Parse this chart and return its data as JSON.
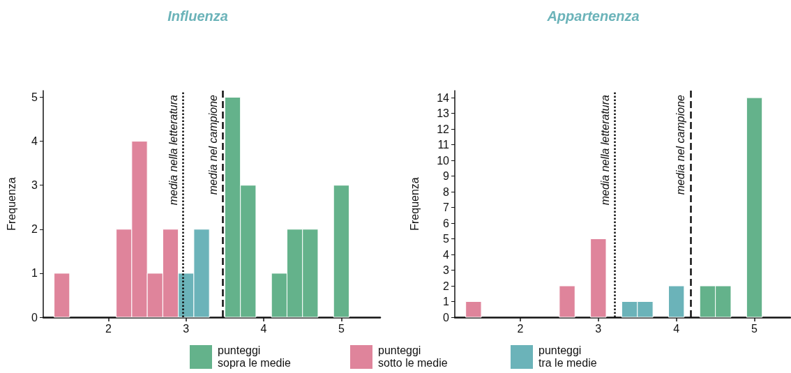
{
  "chart_data": [
    {
      "type": "histogram",
      "title": "Influenza",
      "ylabel": "Frequenza",
      "bins": [
        1.3,
        1.5,
        1.7,
        1.9,
        2.1,
        2.3,
        2.5,
        2.7,
        2.9,
        3.1,
        3.3,
        3.5,
        3.7,
        3.9,
        4.1,
        4.3,
        4.5,
        4.7,
        4.9,
        5.1
      ],
      "series": [
        {
          "name": "punteggi\nsopra le medie",
          "color": "#64b28b",
          "values": [
            null,
            0,
            0,
            0,
            null,
            null,
            null,
            null,
            null,
            null,
            0,
            5,
            3,
            0,
            1,
            2,
            2,
            0,
            3
          ]
        },
        {
          "name": "punteggi\nsotto le medie",
          "color": "#df849b",
          "values": [
            1,
            null,
            null,
            null,
            2,
            4,
            1,
            2,
            null,
            null,
            null,
            null,
            null,
            null,
            null,
            null,
            null,
            null,
            null
          ]
        },
        {
          "name": "punteggi\ntra le medie",
          "color": "#6bb3b9",
          "values": [
            null,
            null,
            null,
            null,
            null,
            null,
            null,
            null,
            1,
            2,
            null,
            null,
            null,
            null,
            null,
            null,
            null,
            null,
            null
          ]
        }
      ],
      "xlim": [
        1.16,
        5.5
      ],
      "xticks": [
        2,
        3,
        4,
        5
      ],
      "ylim": [
        0,
        5.15
      ],
      "yticks": [
        0,
        1,
        2,
        3,
        4,
        5
      ],
      "ref_lines": [
        {
          "axis": "x",
          "value": 2.96,
          "label": "media nella letteratura",
          "line_style": "dotted"
        },
        {
          "axis": "x",
          "value": 3.47,
          "label": "media nel campione",
          "line_style": "dashed"
        }
      ],
      "legend": "bottom",
      "grid": false
    },
    {
      "type": "histogram",
      "title": "Appartenenza",
      "ylabel": "Frequenza",
      "bins": [
        1.3,
        1.5,
        1.7,
        1.9,
        2.1,
        2.3,
        2.5,
        2.7,
        2.9,
        3.1,
        3.3,
        3.5,
        3.7,
        3.9,
        4.1,
        4.3,
        4.5,
        4.7,
        4.9,
        5.1
      ],
      "series": [
        {
          "color": "#64b28b",
          "values": [
            null,
            0,
            0,
            0,
            0,
            0,
            null,
            0,
            null,
            0,
            null,
            null,
            0,
            null,
            0,
            2,
            2,
            0,
            14
          ]
        },
        {
          "color": "#df849b",
          "values": [
            1,
            null,
            null,
            null,
            null,
            null,
            2,
            null,
            5,
            null,
            null,
            null,
            null,
            null,
            null,
            null,
            null,
            null,
            null
          ]
        },
        {
          "color": "#6bb3b9",
          "values": [
            null,
            null,
            null,
            null,
            null,
            null,
            null,
            null,
            null,
            null,
            1,
            1,
            null,
            2,
            null,
            null,
            null,
            null,
            null
          ]
        }
      ],
      "xlim": [
        1.16,
        5.46
      ],
      "xticks": [
        2,
        3,
        4,
        5
      ],
      "ylim": [
        0,
        14.45
      ],
      "yticks": [
        0,
        1,
        2,
        3,
        4,
        5,
        6,
        7,
        8,
        9,
        10,
        11,
        12,
        13,
        14
      ],
      "ref_lines": [
        {
          "axis": "x",
          "value": 3.21,
          "label": "media nella letteratura",
          "line_style": "dotted"
        },
        {
          "axis": "x",
          "value": 4.18,
          "label": "media nel campione",
          "line_style": "dashed"
        }
      ],
      "grid": false
    }
  ]
}
